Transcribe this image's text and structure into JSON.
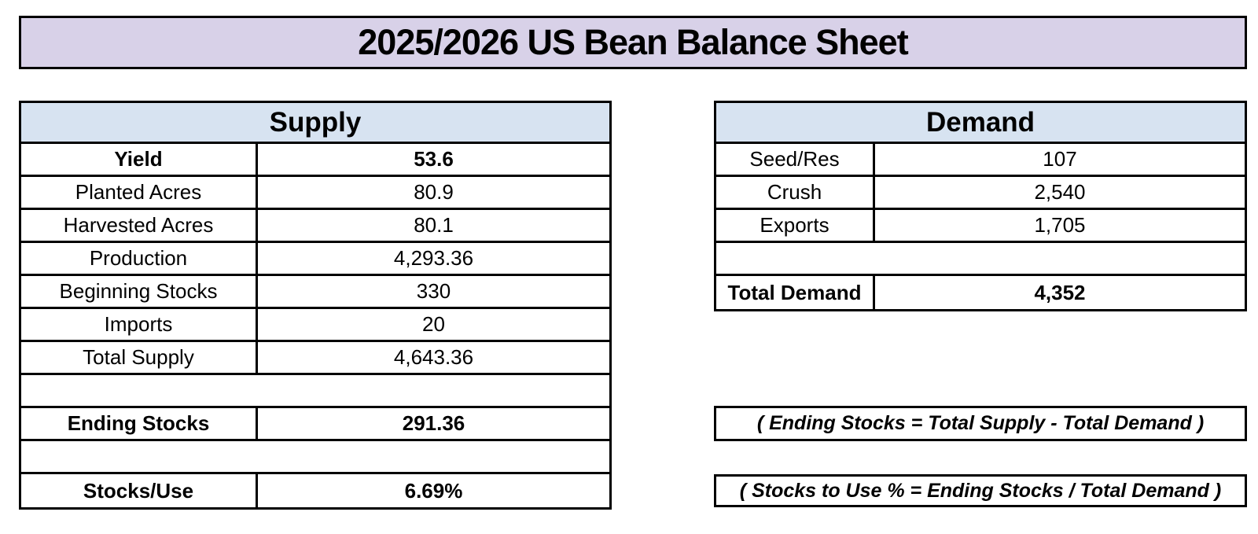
{
  "title": "2025/2026 US Bean Balance Sheet",
  "colors": {
    "title_bar_bg": "#D8D1E8",
    "section_header_bg": "#D7E3F1",
    "border": "#000000",
    "text": "#000000"
  },
  "supply": {
    "header": "Supply",
    "rows": [
      {
        "label": "Yield",
        "value": "53.6",
        "bold": true
      },
      {
        "label": "Planted Acres",
        "value": "80.9",
        "bold": false
      },
      {
        "label": "Harvested Acres",
        "value": "80.1",
        "bold": false
      },
      {
        "label": "Production",
        "value": "4,293.36",
        "bold": false
      },
      {
        "label": "Beginning Stocks",
        "value": "330",
        "bold": false
      },
      {
        "label": "Imports",
        "value": "20",
        "bold": false
      },
      {
        "label": "Total Supply",
        "value": "4,643.36",
        "bold": false
      },
      {
        "label": "Ending Stocks",
        "value": "291.36",
        "bold": true
      },
      {
        "label": "Stocks/Use",
        "value": "6.69%",
        "bold": true
      }
    ]
  },
  "demand": {
    "header": "Demand",
    "rows": [
      {
        "label": "Seed/Res",
        "value": "107",
        "bold": false
      },
      {
        "label": "Crush",
        "value": "2,540",
        "bold": false
      },
      {
        "label": "Exports",
        "value": "1,705",
        "bold": false
      },
      {
        "label": "Total Demand",
        "value": "4,352",
        "bold": true
      }
    ]
  },
  "formulas": {
    "ending_stocks": "( Ending Stocks = Total Supply - Total Demand )",
    "stocks_to_use": "( Stocks to Use % = Ending Stocks / Total Demand )"
  }
}
